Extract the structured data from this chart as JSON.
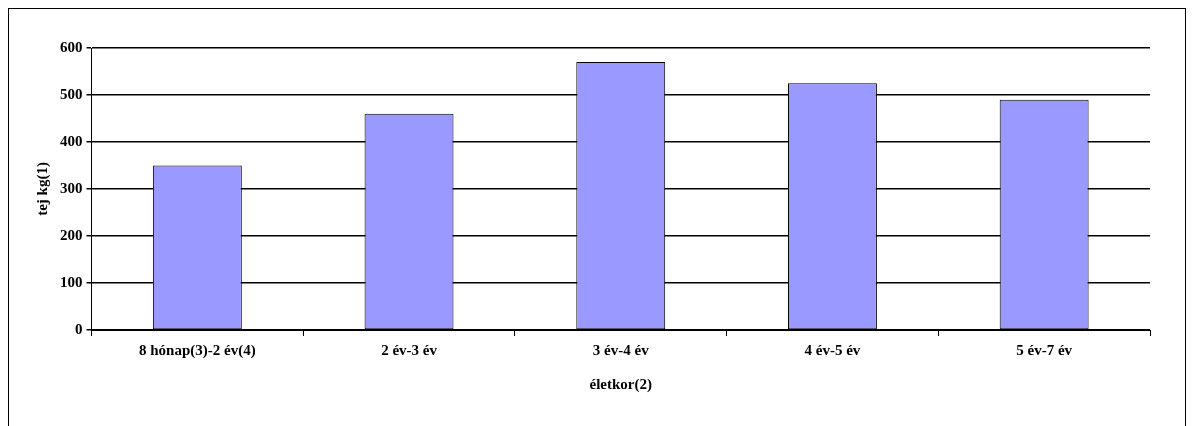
{
  "chart_data": {
    "type": "bar",
    "xlabel": "életkor(2)",
    "ylabel": "tej kg(1)",
    "categories": [
      "8 hónap(3)-2 év(4)",
      "2 év-3 év",
      "3 év-4 év",
      "4 év-5 év",
      "5 év-7 év"
    ],
    "values": [
      350,
      460,
      570,
      525,
      490
    ],
    "color": "#9999ff",
    "ylim": [
      0,
      600
    ],
    "yticks": [
      0,
      100,
      200,
      300,
      400,
      500,
      600
    ],
    "grid": "y",
    "legend": false
  }
}
